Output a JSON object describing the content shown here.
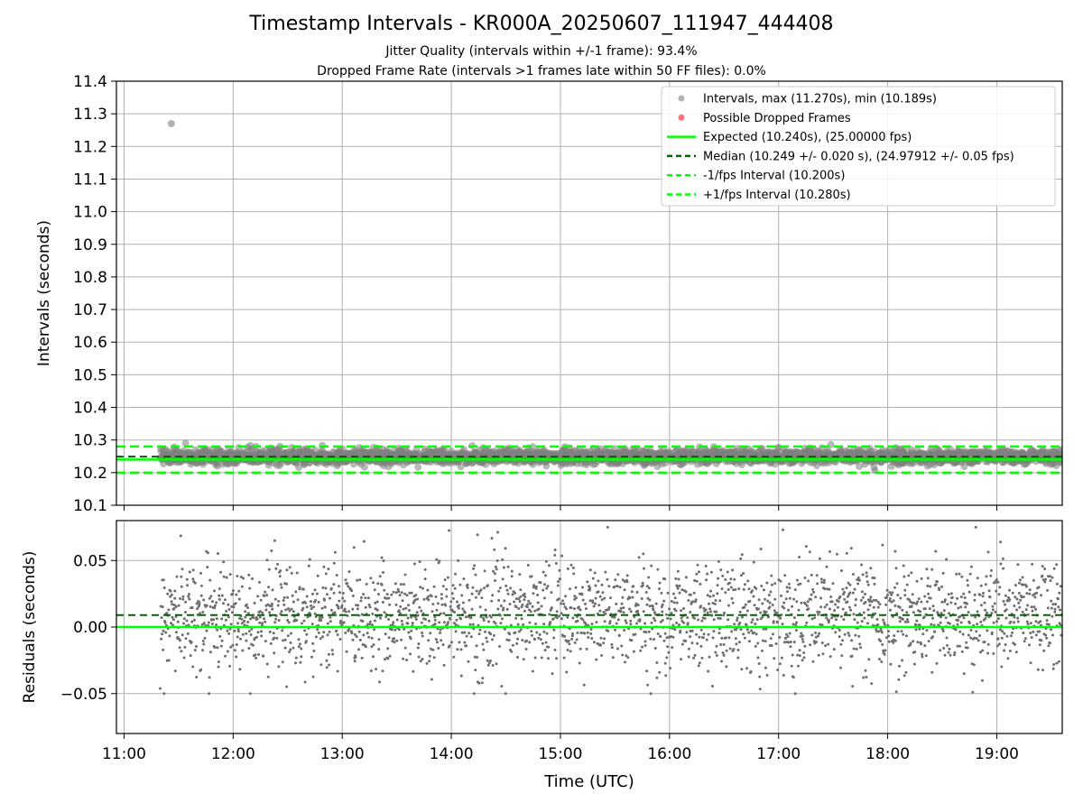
{
  "header": {
    "title": "Timestamp Intervals - KR000A_20250607_111947_444408",
    "subtitle_1": "Jitter Quality (intervals within +/-1 frame): 93.4%",
    "subtitle_2": "Dropped Frame Rate (intervals >1 frames late within 50 FF files): 0.0%"
  },
  "colors": {
    "points": "#808080",
    "dropped": "#ff0000",
    "expected": "#00ff00",
    "median": "#006400",
    "grid": "#b0b0b0"
  },
  "chart_data": [
    {
      "type": "scatter",
      "id": "intervals",
      "ylabel": "Intervals (seconds)",
      "xlabel": "",
      "xlim": [
        10.93,
        19.6
      ],
      "ylim": [
        10.1,
        11.4
      ],
      "x_ticks": [
        "11:00",
        "12:00",
        "13:00",
        "14:00",
        "15:00",
        "16:00",
        "17:00",
        "18:00",
        "19:00"
      ],
      "y_ticks": [
        "10.1",
        "10.2",
        "10.3",
        "10.4",
        "10.5",
        "10.6",
        "10.7",
        "10.8",
        "10.9",
        "11.0",
        "11.1",
        "11.2",
        "11.3",
        "11.4"
      ],
      "grid": true,
      "legend_position": "top-right",
      "series": [
        {
          "name": "Intervals, max (11.270s), min (10.189s)",
          "kind": "points",
          "x_range": [
            "11:20",
            "19:36"
          ],
          "y_typical": 10.249,
          "y_spread": 0.02,
          "outliers": [
            {
              "x": "11:26",
              "y": 11.27
            }
          ]
        },
        {
          "name": "Possible Dropped Frames",
          "kind": "points",
          "values": []
        },
        {
          "name": "Expected (10.240s), (25.00000 fps)",
          "kind": "hline",
          "y": 10.24
        },
        {
          "name": "Median (10.249 +/- 0.020 s), (24.97912 +/- 0.05 fps)",
          "kind": "hline",
          "y": 10.249
        },
        {
          "name": "-1/fps Interval (10.200s)",
          "kind": "hline",
          "y": 10.2
        },
        {
          "name": "+1/fps Interval (10.280s)",
          "kind": "hline",
          "y": 10.28
        }
      ]
    },
    {
      "type": "scatter",
      "id": "residuals",
      "ylabel": "Residuals (seconds)",
      "xlabel": "Time (UTC)",
      "xlim": [
        10.93,
        19.6
      ],
      "ylim": [
        -0.08,
        0.08
      ],
      "x_ticks": [
        "11:00",
        "12:00",
        "13:00",
        "14:00",
        "15:00",
        "16:00",
        "17:00",
        "18:00",
        "19:00"
      ],
      "y_ticks": [
        "−0.05",
        "0.00",
        "0.05"
      ],
      "grid": true,
      "series": [
        {
          "name": "Residuals",
          "kind": "points",
          "x_range": [
            "11:20",
            "19:36"
          ],
          "y_typical": 0.009,
          "y_spread": 0.02,
          "max": 0.075,
          "min": -0.05
        },
        {
          "name": "Expected",
          "kind": "hline",
          "y": 0.0
        },
        {
          "name": "Median",
          "kind": "hline",
          "y": 0.009
        }
      ]
    }
  ]
}
